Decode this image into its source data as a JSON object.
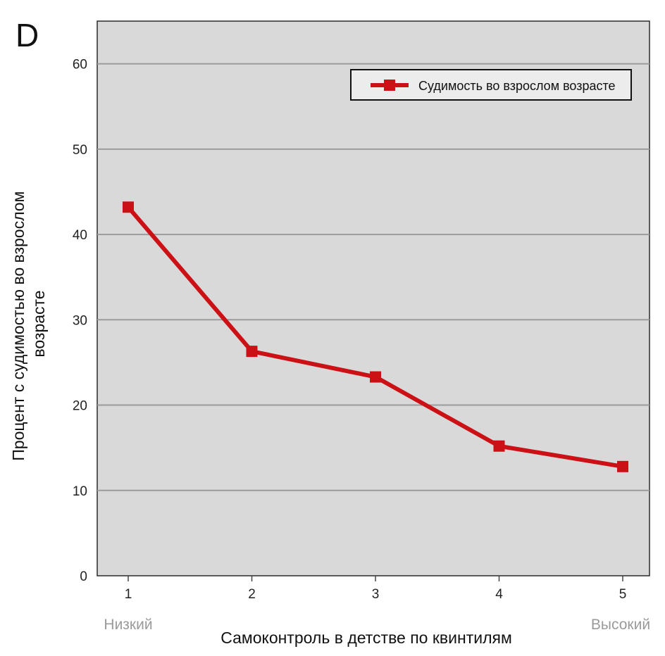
{
  "panel_label": "D",
  "colors": {
    "series": "#cc1116",
    "plot_background": "#d9d9d9",
    "gridline": "#9b9b9b",
    "end_label": "#9a9a9a"
  },
  "chart_data": {
    "type": "line",
    "title": "",
    "xlabel": "Самоконтроль в детстве по квинтилям",
    "ylabel": "Процент с судимостью во взрослом возрасте",
    "ylabel_lines": [
      "Процент с судимостью во взрослом",
      "возрасте"
    ],
    "categories": [
      "1",
      "2",
      "3",
      "4",
      "5"
    ],
    "x_end_labels": {
      "low": "Низкий",
      "high": "Высокий"
    },
    "ylim": [
      0,
      65
    ],
    "yticks": [
      0,
      10,
      20,
      30,
      40,
      50,
      60
    ],
    "grid": true,
    "legend": {
      "position": "top-right"
    },
    "series": [
      {
        "name": "Судимость во взрослом возрасте",
        "marker": "square",
        "values": [
          43.2,
          26.3,
          23.3,
          15.2,
          12.8
        ]
      }
    ]
  }
}
